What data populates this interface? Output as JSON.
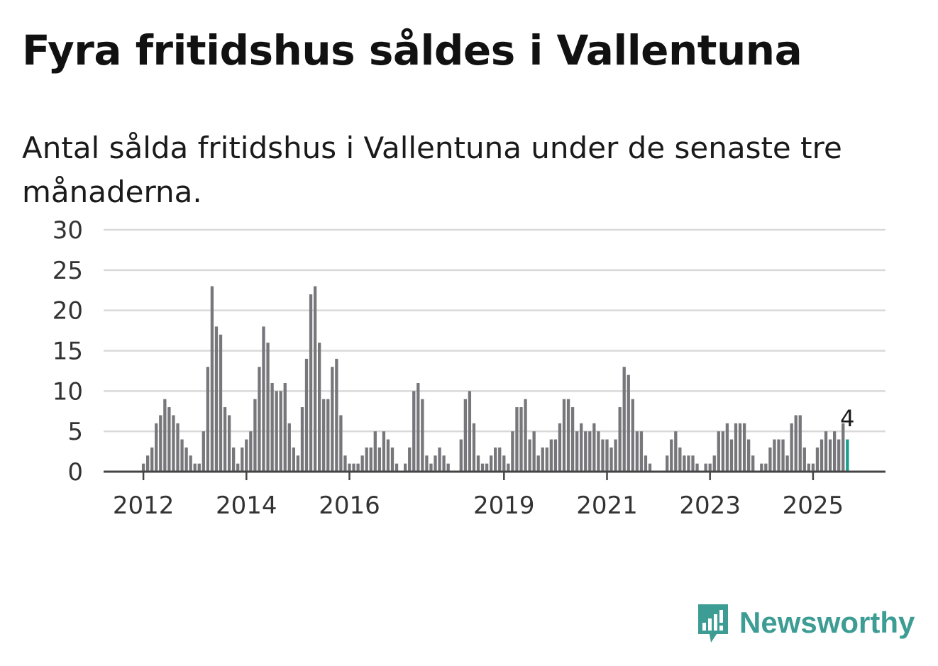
{
  "title": "Fyra fritidshus såldes i Vallentuna",
  "subtitle": "Antal sålda fritidshus i Vallentuna under de senaste tre månaderna.",
  "brand": {
    "name": "Newsworthy",
    "color": "#3d9c94",
    "icon": "newsworthy-chat-bars-icon"
  },
  "chart_data": {
    "type": "bar",
    "title": "",
    "xlabel": "",
    "ylabel": "",
    "ylim": [
      0,
      30
    ],
    "yticks": [
      0,
      5,
      10,
      15,
      20,
      25,
      30
    ],
    "grid": true,
    "x_tick_labels": [
      {
        "label": "2012",
        "index": 9
      },
      {
        "label": "2014",
        "index": 33
      },
      {
        "label": "2016",
        "index": 57
      },
      {
        "label": "2019",
        "index": 93
      },
      {
        "label": "2021",
        "index": 117
      },
      {
        "label": "2023",
        "index": 141
      },
      {
        "label": "2025",
        "index": 165
      }
    ],
    "bar_color": "#77767b",
    "highlight_color": "#1b9e8f",
    "highlight_label": "4",
    "values": [
      0,
      0,
      0,
      0,
      0,
      0,
      0,
      0,
      0,
      1,
      2,
      3,
      6,
      7,
      9,
      8,
      7,
      6,
      4,
      3,
      2,
      1,
      1,
      5,
      13,
      23,
      18,
      17,
      8,
      7,
      3,
      1,
      3,
      4,
      5,
      9,
      13,
      18,
      16,
      11,
      10,
      10,
      11,
      6,
      3,
      2,
      8,
      14,
      22,
      23,
      16,
      9,
      9,
      13,
      14,
      7,
      2,
      1,
      1,
      1,
      2,
      3,
      3,
      5,
      3,
      5,
      4,
      3,
      1,
      0,
      1,
      3,
      10,
      11,
      9,
      2,
      1,
      2,
      3,
      2,
      1,
      0,
      0,
      4,
      9,
      10,
      6,
      2,
      1,
      1,
      2,
      3,
      3,
      2,
      1,
      5,
      8,
      8,
      9,
      4,
      5,
      2,
      3,
      3,
      4,
      4,
      6,
      9,
      9,
      8,
      5,
      6,
      5,
      5,
      6,
      5,
      4,
      4,
      3,
      4,
      8,
      13,
      12,
      9,
      5,
      5,
      2,
      1,
      0,
      0,
      0,
      2,
      4,
      5,
      3,
      2,
      2,
      2,
      1,
      0,
      1,
      1,
      2,
      5,
      5,
      6,
      4,
      6,
      6,
      6,
      4,
      2,
      0,
      1,
      1,
      3,
      4,
      4,
      4,
      2,
      6,
      7,
      7,
      3,
      1,
      1,
      3,
      4,
      5,
      4,
      5,
      4,
      6,
      4
    ]
  }
}
